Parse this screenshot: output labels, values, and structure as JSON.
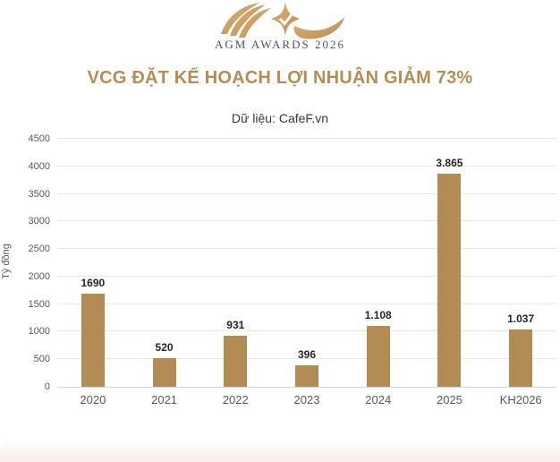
{
  "logo": {
    "icon": "agm-awards-swoosh-icon",
    "text": "AGM AWARDS 2026"
  },
  "title": "VCG ĐẶT KẾ HOẠCH LỢI NHUẬN GIẢM 73%",
  "subtitle": "Dữ liệu: CafeF.vn",
  "chart_data": {
    "type": "bar",
    "categories": [
      "2020",
      "2021",
      "2022",
      "2023",
      "2024",
      "2025",
      "KH2026"
    ],
    "values": [
      1690,
      520,
      931,
      396,
      1108,
      3865,
      1037
    ],
    "value_labels": [
      "1690",
      "520",
      "931",
      "396",
      "1.108",
      "3.865",
      "1.037"
    ],
    "title": "VCG ĐẶT KẾ HOẠCH LỢI NHUẬN GIẢM 73%",
    "xlabel": "",
    "ylabel": "Tỷ đồng",
    "ylim": [
      0,
      4500
    ],
    "yticks": [
      0,
      500,
      1000,
      1500,
      2000,
      2500,
      3000,
      3500,
      4000,
      4500
    ],
    "grid": true,
    "legend": "none",
    "bar_color": "#b28c54"
  },
  "colors": {
    "title_gold": "#b48e55",
    "bar_gold": "#b28c54",
    "axis_text": "#595959",
    "data_label": "#262626",
    "logo_text": "#4a5768",
    "gridline": "#e8e8e8"
  }
}
